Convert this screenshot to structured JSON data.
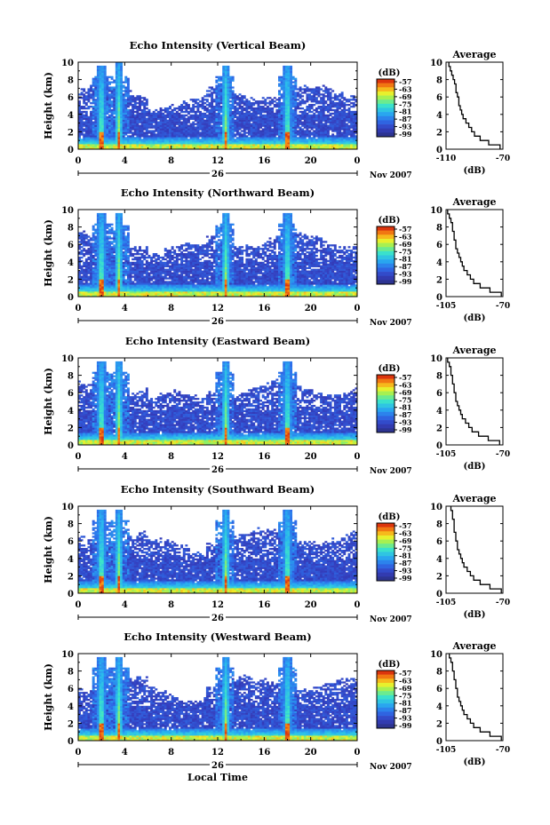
{
  "figure": {
    "xlabel": "Local Time",
    "date_label": "Nov 2007",
    "day_label": "26",
    "height_label": "Height (km)",
    "avg_title": "Average",
    "avg_xlabel": "(dB)",
    "cbar_unit": "(dB)"
  },
  "chart_data": [
    {
      "type": "heatmap",
      "title": "Echo Intensity (Vertical Beam)",
      "xlabel": "Local Time",
      "ylabel": "Height (km)",
      "x_ticks": [
        "0",
        "4",
        "8",
        "12",
        "16",
        "20",
        "0"
      ],
      "y_ticks": [
        "0",
        "2",
        "4",
        "6",
        "8",
        "10"
      ],
      "xlim": [
        0,
        24
      ],
      "ylim": [
        0,
        10
      ],
      "colorbar": {
        "label": "(dB)",
        "ticks": [
          "-57",
          "-63",
          "-69",
          "-75",
          "-81",
          "-87",
          "-93",
          "-99"
        ],
        "range": [
          -99,
          -57
        ]
      },
      "convective_columns_hours": [
        2.0,
        3.5,
        12.7,
        18.0
      ],
      "average_profile": {
        "xlim": [
          -110,
          -70
        ],
        "x_ticks": [
          "-110",
          "-70"
        ],
        "height_km": [
          0,
          0.5,
          1,
          1.5,
          2,
          2.5,
          3,
          3.5,
          4,
          4.5,
          5,
          5.5,
          6,
          6.5,
          7,
          7.5,
          8,
          8.5,
          9,
          9.5
        ],
        "db": [
          -72,
          -80,
          -86,
          -90,
          -92,
          -94,
          -96,
          -98,
          -99,
          -100,
          -101,
          -101,
          -102,
          -103,
          -103,
          -104,
          -105,
          -106,
          -107,
          -108
        ]
      }
    },
    {
      "type": "heatmap",
      "title": "Echo Intensity (Northward Beam)",
      "xlabel": "Local Time",
      "ylabel": "Height (km)",
      "x_ticks": [
        "0",
        "4",
        "8",
        "12",
        "16",
        "20",
        "0"
      ],
      "y_ticks": [
        "0",
        "2",
        "4",
        "6",
        "8",
        "10"
      ],
      "xlim": [
        0,
        24
      ],
      "ylim": [
        0,
        10
      ],
      "colorbar": {
        "label": "(dB)",
        "ticks": [
          "-57",
          "-63",
          "-69",
          "-75",
          "-81",
          "-87",
          "-93",
          "-99"
        ],
        "range": [
          -99,
          -57
        ]
      },
      "convective_columns_hours": [
        2.0,
        3.5,
        12.7,
        18.0
      ],
      "average_profile": {
        "xlim": [
          -105,
          -70
        ],
        "x_ticks": [
          "-105",
          "-70"
        ],
        "height_km": [
          0,
          0.5,
          1,
          1.5,
          2,
          2.5,
          3,
          3.5,
          4,
          4.5,
          5,
          5.5,
          6,
          6.5,
          7,
          7.5,
          8,
          8.5,
          9,
          9.5
        ],
        "db": [
          -71,
          -78,
          -84,
          -88,
          -90,
          -92,
          -94,
          -95,
          -96,
          -97,
          -98,
          -99,
          -99,
          -100,
          -100,
          -101,
          -101,
          -102,
          -103,
          -104
        ]
      }
    },
    {
      "type": "heatmap",
      "title": "Echo Intensity (Eastward Beam)",
      "xlabel": "Local Time",
      "ylabel": "Height (km)",
      "x_ticks": [
        "0",
        "4",
        "8",
        "12",
        "16",
        "20",
        "0"
      ],
      "y_ticks": [
        "0",
        "2",
        "4",
        "6",
        "8",
        "10"
      ],
      "xlim": [
        0,
        24
      ],
      "ylim": [
        0,
        10
      ],
      "colorbar": {
        "label": "(dB)",
        "ticks": [
          "-57",
          "-63",
          "-69",
          "-75",
          "-81",
          "-87",
          "-93",
          "-99"
        ],
        "range": [
          -99,
          -57
        ]
      },
      "convective_columns_hours": [
        2.0,
        3.5,
        12.7,
        18.0
      ],
      "average_profile": {
        "xlim": [
          -105,
          -70
        ],
        "x_ticks": [
          "-105",
          "-70"
        ],
        "height_km": [
          0,
          0.5,
          1,
          1.5,
          2,
          2.5,
          3,
          3.5,
          4,
          4.5,
          5,
          5.5,
          6,
          6.5,
          7,
          7.5,
          8,
          8.5,
          9,
          9.5
        ],
        "db": [
          -72,
          -79,
          -85,
          -89,
          -91,
          -93,
          -95,
          -96,
          -97,
          -98,
          -99,
          -99,
          -100,
          -100,
          -101,
          -101,
          -102,
          -102,
          -103,
          -104
        ]
      }
    },
    {
      "type": "heatmap",
      "title": "Echo Intensity (Southward Beam)",
      "xlabel": "Local Time",
      "ylabel": "Height (km)",
      "x_ticks": [
        "0",
        "4",
        "8",
        "12",
        "16",
        "20",
        "0"
      ],
      "y_ticks": [
        "0",
        "2",
        "4",
        "6",
        "8",
        "10"
      ],
      "xlim": [
        0,
        24
      ],
      "ylim": [
        0,
        10
      ],
      "colorbar": {
        "label": "(dB)",
        "ticks": [
          "-57",
          "-63",
          "-69",
          "-75",
          "-81",
          "-87",
          "-93",
          "-99"
        ],
        "range": [
          -99,
          -57
        ]
      },
      "convective_columns_hours": [
        2.0,
        3.5,
        12.7,
        18.0
      ],
      "average_profile": {
        "xlim": [
          -105,
          -70
        ],
        "x_ticks": [
          "-105",
          "-70"
        ],
        "height_km": [
          0,
          0.5,
          1,
          1.5,
          2,
          2.5,
          3,
          3.5,
          4,
          4.5,
          5,
          5.5,
          6,
          6.5,
          7,
          7.5,
          8,
          8.5,
          9,
          9.5
        ],
        "db": [
          -71,
          -78,
          -84,
          -88,
          -90,
          -92,
          -94,
          -95,
          -96,
          -97,
          -98,
          -98,
          -99,
          -99,
          -100,
          -100,
          -100,
          -101,
          -101,
          -102
        ]
      }
    },
    {
      "type": "heatmap",
      "title": "Echo Intensity (Westward Beam)",
      "xlabel": "Local Time",
      "ylabel": "Height (km)",
      "x_ticks": [
        "0",
        "4",
        "8",
        "12",
        "16",
        "20",
        "0"
      ],
      "y_ticks": [
        "0",
        "2",
        "4",
        "6",
        "8",
        "10"
      ],
      "xlim": [
        0,
        24
      ],
      "ylim": [
        0,
        10
      ],
      "colorbar": {
        "label": "(dB)",
        "ticks": [
          "-57",
          "-63",
          "-69",
          "-75",
          "-81",
          "-87",
          "-93",
          "-99"
        ],
        "range": [
          -99,
          -57
        ]
      },
      "convective_columns_hours": [
        2.0,
        3.5,
        12.7,
        18.0
      ],
      "average_profile": {
        "xlim": [
          -105,
          -70
        ],
        "x_ticks": [
          "-105",
          "-70"
        ],
        "height_km": [
          0,
          0.5,
          1,
          1.5,
          2,
          2.5,
          3,
          3.5,
          4,
          4.5,
          5,
          5.5,
          6,
          6.5,
          7,
          7.5,
          8,
          8.5,
          9,
          9.5
        ],
        "db": [
          -71,
          -78,
          -84,
          -88,
          -90,
          -92,
          -94,
          -95,
          -96,
          -97,
          -98,
          -98,
          -99,
          -99,
          -100,
          -100,
          -101,
          -101,
          -102,
          -103
        ]
      }
    }
  ]
}
